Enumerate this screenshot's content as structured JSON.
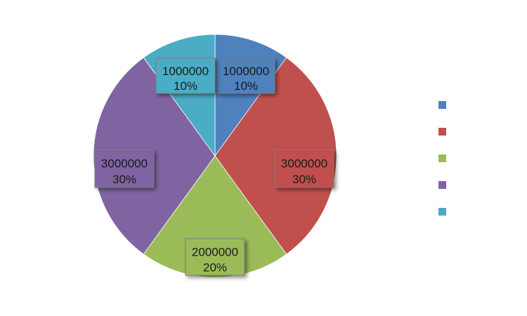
{
  "chart_data": {
    "type": "pie",
    "categories": [
      "",
      "",
      "",
      "",
      ""
    ],
    "values": [
      1000000,
      3000000,
      2000000,
      3000000,
      1000000
    ],
    "percent_labels": [
      "10%",
      "30%",
      "20%",
      "30%",
      "10%"
    ],
    "value_labels": [
      "1000000",
      "3000000",
      "2000000",
      "3000000",
      "1000000"
    ],
    "colors": [
      "#4F81BD",
      "#C0504D",
      "#9BBB59",
      "#8064A2",
      "#4BACC6"
    ],
    "start_angle_deg": 0,
    "direction": "clockwise",
    "legend": "right",
    "title": ""
  }
}
